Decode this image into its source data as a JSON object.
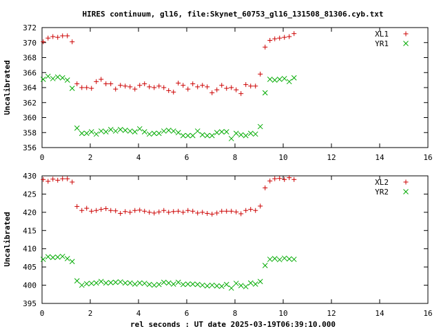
{
  "figure": {
    "title": "HIRES continuum, gl16, file:Skynet_60753_gl16_131508_81306.cyb.txt",
    "xlabel": "rel seconds : UT date 2025-03-19T06:39:10.000"
  },
  "chart_data": [
    {
      "type": "scatter",
      "ylabel": "Uncalibrated",
      "xlim": [
        0,
        16
      ],
      "ylim": [
        356,
        372
      ],
      "xticks": [
        0,
        2,
        4,
        6,
        8,
        10,
        12,
        14,
        16
      ],
      "yticks": [
        356,
        358,
        360,
        362,
        364,
        366,
        368,
        370,
        372
      ],
      "legend_position": "top-right",
      "grid": false,
      "series": [
        {
          "name": "XL1",
          "marker": "plus",
          "color": "#cc0000",
          "points": [
            [
              0.05,
              370.1
            ],
            [
              0.25,
              370.6
            ],
            [
              0.45,
              370.8
            ],
            [
              0.65,
              370.7
            ],
            [
              0.85,
              370.9
            ],
            [
              1.05,
              370.9
            ],
            [
              1.25,
              370.1
            ],
            [
              1.45,
              364.5
            ],
            [
              1.65,
              364.0
            ],
            [
              1.85,
              364.0
            ],
            [
              2.05,
              363.9
            ],
            [
              2.25,
              364.8
            ],
            [
              2.45,
              365.1
            ],
            [
              2.65,
              364.5
            ],
            [
              2.85,
              364.5
            ],
            [
              3.05,
              363.8
            ],
            [
              3.25,
              364.3
            ],
            [
              3.45,
              364.2
            ],
            [
              3.65,
              364.1
            ],
            [
              3.85,
              363.8
            ],
            [
              4.05,
              364.3
            ],
            [
              4.25,
              364.5
            ],
            [
              4.45,
              364.1
            ],
            [
              4.65,
              364.0
            ],
            [
              4.85,
              364.2
            ],
            [
              5.05,
              364.0
            ],
            [
              5.25,
              363.6
            ],
            [
              5.45,
              363.4
            ],
            [
              5.65,
              364.6
            ],
            [
              5.85,
              364.3
            ],
            [
              6.05,
              363.8
            ],
            [
              6.25,
              364.5
            ],
            [
              6.45,
              364.1
            ],
            [
              6.65,
              364.3
            ],
            [
              6.85,
              364.1
            ],
            [
              7.05,
              363.3
            ],
            [
              7.25,
              363.7
            ],
            [
              7.45,
              364.3
            ],
            [
              7.65,
              363.9
            ],
            [
              7.85,
              364.0
            ],
            [
              8.05,
              363.7
            ],
            [
              8.25,
              363.2
            ],
            [
              8.45,
              364.4
            ],
            [
              8.65,
              364.2
            ],
            [
              8.85,
              364.2
            ],
            [
              9.05,
              365.8
            ],
            [
              9.25,
              369.4
            ],
            [
              9.45,
              370.3
            ],
            [
              9.65,
              370.5
            ],
            [
              9.85,
              370.6
            ],
            [
              10.05,
              370.7
            ],
            [
              10.25,
              370.8
            ],
            [
              10.45,
              371.2
            ]
          ]
        },
        {
          "name": "YR1",
          "marker": "cross",
          "color": "#00aa00",
          "points": [
            [
              0.05,
              365.1
            ],
            [
              0.25,
              365.5
            ],
            [
              0.45,
              365.2
            ],
            [
              0.65,
              365.4
            ],
            [
              0.85,
              365.3
            ],
            [
              1.05,
              365.0
            ],
            [
              1.25,
              363.9
            ],
            [
              1.45,
              358.6
            ],
            [
              1.65,
              357.9
            ],
            [
              1.85,
              357.9
            ],
            [
              2.05,
              358.1
            ],
            [
              2.25,
              357.8
            ],
            [
              2.45,
              358.2
            ],
            [
              2.65,
              358.1
            ],
            [
              2.85,
              358.4
            ],
            [
              3.05,
              358.2
            ],
            [
              3.25,
              358.4
            ],
            [
              3.45,
              358.3
            ],
            [
              3.65,
              358.2
            ],
            [
              3.85,
              358.1
            ],
            [
              4.05,
              358.5
            ],
            [
              4.25,
              358.1
            ],
            [
              4.45,
              357.8
            ],
            [
              4.65,
              357.9
            ],
            [
              4.85,
              357.9
            ],
            [
              5.05,
              358.2
            ],
            [
              5.25,
              358.3
            ],
            [
              5.45,
              358.2
            ],
            [
              5.65,
              358.0
            ],
            [
              5.85,
              357.6
            ],
            [
              6.05,
              357.6
            ],
            [
              6.25,
              357.6
            ],
            [
              6.45,
              358.2
            ],
            [
              6.65,
              357.7
            ],
            [
              6.85,
              357.6
            ],
            [
              7.05,
              357.6
            ],
            [
              7.25,
              358.0
            ],
            [
              7.45,
              358.1
            ],
            [
              7.65,
              358.1
            ],
            [
              7.85,
              357.2
            ],
            [
              8.05,
              357.9
            ],
            [
              8.25,
              357.7
            ],
            [
              8.45,
              357.6
            ],
            [
              8.65,
              357.9
            ],
            [
              8.85,
              357.8
            ],
            [
              9.05,
              358.8
            ],
            [
              9.25,
              363.3
            ],
            [
              9.45,
              365.1
            ],
            [
              9.65,
              365.0
            ],
            [
              9.85,
              365.1
            ],
            [
              10.05,
              365.2
            ],
            [
              10.25,
              364.8
            ],
            [
              10.45,
              365.3
            ]
          ]
        }
      ]
    },
    {
      "type": "scatter",
      "ylabel": "Uncalibrated",
      "xlim": [
        0,
        16
      ],
      "ylim": [
        395,
        430
      ],
      "xticks": [
        0,
        2,
        4,
        6,
        8,
        10,
        12,
        14,
        16
      ],
      "yticks": [
        395,
        400,
        405,
        410,
        415,
        420,
        425,
        430
      ],
      "legend_position": "top-right",
      "grid": false,
      "series": [
        {
          "name": "XL2",
          "marker": "plus",
          "color": "#cc0000",
          "points": [
            [
              0.05,
              429.0
            ],
            [
              0.25,
              428.5
            ],
            [
              0.45,
              429.1
            ],
            [
              0.65,
              428.8
            ],
            [
              0.85,
              429.2
            ],
            [
              1.05,
              429.2
            ],
            [
              1.25,
              428.3
            ],
            [
              1.45,
              421.6
            ],
            [
              1.65,
              420.5
            ],
            [
              1.85,
              421.1
            ],
            [
              2.05,
              420.3
            ],
            [
              2.25,
              420.5
            ],
            [
              2.45,
              420.8
            ],
            [
              2.65,
              421.0
            ],
            [
              2.85,
              420.5
            ],
            [
              3.05,
              420.4
            ],
            [
              3.25,
              419.7
            ],
            [
              3.45,
              420.2
            ],
            [
              3.65,
              420.0
            ],
            [
              3.85,
              420.5
            ],
            [
              4.05,
              420.6
            ],
            [
              4.25,
              420.3
            ],
            [
              4.45,
              420.0
            ],
            [
              4.65,
              419.8
            ],
            [
              4.85,
              420.1
            ],
            [
              5.05,
              420.5
            ],
            [
              5.25,
              420.0
            ],
            [
              5.45,
              420.2
            ],
            [
              5.65,
              420.3
            ],
            [
              5.85,
              420.0
            ],
            [
              6.05,
              420.5
            ],
            [
              6.25,
              420.3
            ],
            [
              6.45,
              419.8
            ],
            [
              6.65,
              420.0
            ],
            [
              6.85,
              419.7
            ],
            [
              7.05,
              419.5
            ],
            [
              7.25,
              419.8
            ],
            [
              7.45,
              420.3
            ],
            [
              7.65,
              420.3
            ],
            [
              7.85,
              420.3
            ],
            [
              8.05,
              420.1
            ],
            [
              8.25,
              419.6
            ],
            [
              8.45,
              420.5
            ],
            [
              8.65,
              420.8
            ],
            [
              8.85,
              420.5
            ],
            [
              9.05,
              421.7
            ],
            [
              9.25,
              426.7
            ],
            [
              9.45,
              428.6
            ],
            [
              9.65,
              429.2
            ],
            [
              9.85,
              429.3
            ],
            [
              10.05,
              429.0
            ],
            [
              10.25,
              429.5
            ],
            [
              10.45,
              429.0
            ]
          ]
        },
        {
          "name": "YR2",
          "marker": "cross",
          "color": "#00aa00",
          "points": [
            [
              0.05,
              407.1
            ],
            [
              0.25,
              407.8
            ],
            [
              0.45,
              407.6
            ],
            [
              0.65,
              407.7
            ],
            [
              0.85,
              407.9
            ],
            [
              1.05,
              407.3
            ],
            [
              1.25,
              406.5
            ],
            [
              1.45,
              401.2
            ],
            [
              1.65,
              400.0
            ],
            [
              1.85,
              400.4
            ],
            [
              2.05,
              400.5
            ],
            [
              2.25,
              400.6
            ],
            [
              2.45,
              401.0
            ],
            [
              2.65,
              400.6
            ],
            [
              2.85,
              400.7
            ],
            [
              3.05,
              400.8
            ],
            [
              3.25,
              400.9
            ],
            [
              3.45,
              400.6
            ],
            [
              3.65,
              400.6
            ],
            [
              3.85,
              400.3
            ],
            [
              4.05,
              400.6
            ],
            [
              4.25,
              400.5
            ],
            [
              4.45,
              400.2
            ],
            [
              4.65,
              400.0
            ],
            [
              4.85,
              400.2
            ],
            [
              5.05,
              400.8
            ],
            [
              5.25,
              400.6
            ],
            [
              5.45,
              400.3
            ],
            [
              5.65,
              400.8
            ],
            [
              5.85,
              400.2
            ],
            [
              6.05,
              400.3
            ],
            [
              6.25,
              400.3
            ],
            [
              6.45,
              400.2
            ],
            [
              6.65,
              400.0
            ],
            [
              6.85,
              399.8
            ],
            [
              7.05,
              400.0
            ],
            [
              7.25,
              399.8
            ],
            [
              7.45,
              399.7
            ],
            [
              7.65,
              400.2
            ],
            [
              7.85,
              399.2
            ],
            [
              8.05,
              400.5
            ],
            [
              8.25,
              399.9
            ],
            [
              8.45,
              399.6
            ],
            [
              8.65,
              400.6
            ],
            [
              8.85,
              400.3
            ],
            [
              9.05,
              401.0
            ],
            [
              9.25,
              405.4
            ],
            [
              9.45,
              407.1
            ],
            [
              9.65,
              407.3
            ],
            [
              9.85,
              407.0
            ],
            [
              10.05,
              407.4
            ],
            [
              10.25,
              407.2
            ],
            [
              10.45,
              407.1
            ]
          ]
        }
      ]
    }
  ]
}
